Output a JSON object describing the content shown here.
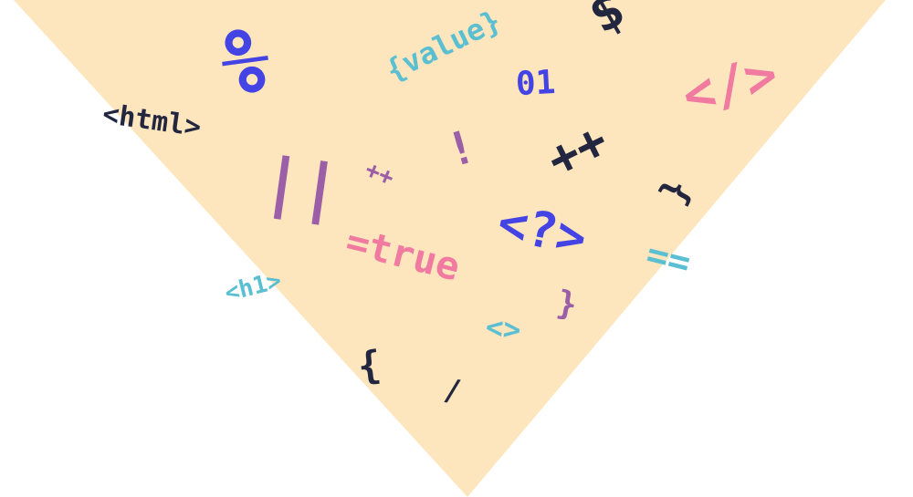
{
  "colors": {
    "background": "#ffffff",
    "triangle": "#fde6bd",
    "navy": "#23263f",
    "blue": "#4443e4",
    "teal": "#5bbfd2",
    "pink": "#f17aa0",
    "purple": "#9b5fa8"
  },
  "symbols": {
    "dollar": "$",
    "percent": "%",
    "value": "{value}",
    "zero_one": "01",
    "close_tag": "</>",
    "html_tag": "<html>",
    "exclamation": "!",
    "plus_plus_large": "++",
    "pipes": "||",
    "plus_plus_small": "++",
    "brace_wavy": "}",
    "question_tag": "<?>",
    "equals_double": "==",
    "equals_true": "=true",
    "h1_tag": "<h1>",
    "brace_close": "}",
    "angle_pair": "<>",
    "brace_open": "{",
    "slash": "/"
  }
}
